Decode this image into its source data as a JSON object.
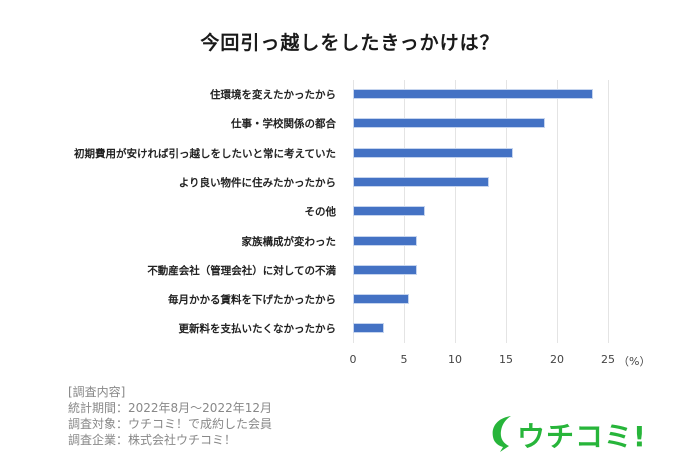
{
  "title": "今回引っ越しをしたきっかけは？",
  "chart_data": {
    "type": "bar",
    "orientation": "horizontal",
    "title": "今回引っ越しをしたきっかけは？",
    "categories": [
      "住環境を変えたかったから",
      "仕事・学校関係の都合",
      "初期費用が安ければ引っ越しをしたいと常に考えていた",
      "より良い物件に住みたかったから",
      "その他",
      "家族構成が変わった",
      "不動産会社（管理会社）に対しての不満",
      "毎月かかる賃料を下げたかったから",
      "更新料を支払いたくなかったから"
    ],
    "values": [
      23.5,
      18.8,
      15.7,
      13.3,
      7.1,
      6.3,
      6.3,
      5.5,
      3.0
    ],
    "xlabel": "（%）",
    "ylabel": "",
    "xlim": [
      0,
      25
    ],
    "xticks": [
      "0",
      "5",
      "10",
      "15",
      "20",
      "25"
    ],
    "grid": true,
    "bar_color": "#4472c4",
    "legend": null
  },
  "axis_unit": "（%）",
  "notes": {
    "heading": "[調査内容]",
    "period": "統計期間：2022年8月～2022年12月",
    "target": "調査対象：ウチコミ！で成約した会員",
    "company": "調査企業：株式会社ウチコミ！"
  },
  "logo": {
    "text": "ウチコミ!",
    "color": "#27b53a"
  }
}
